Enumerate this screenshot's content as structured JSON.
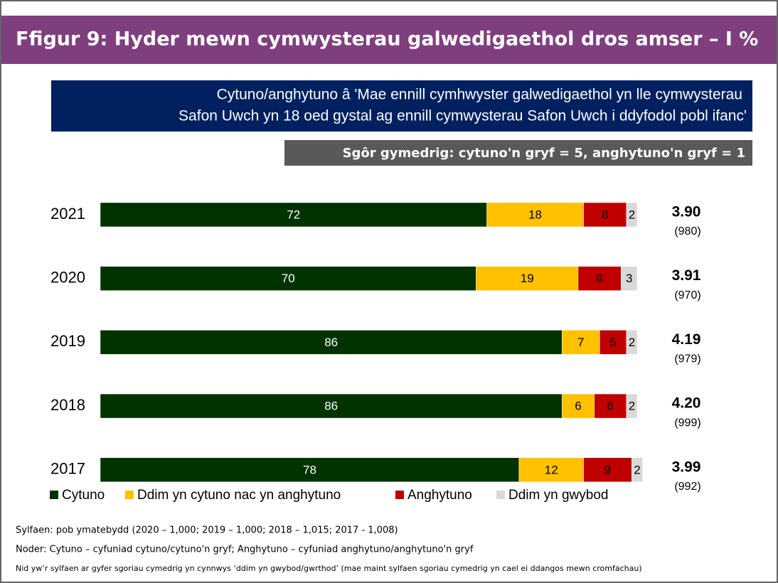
{
  "chart_data": {
    "type": "stacked_barh",
    "title": "Ffigur 9: Hyder mewn cymwysterau galwedigaethol dros amser – I %",
    "subtitle": [
      "Cytuno/anghytuno â 'Mae ennill cymhwyster galwedigaethol yn lle cymwysterau",
      "Safon Uwch yn 18 oed gystal ag ennill cymwysterau Safon Uwch i ddyfodol pobl ifanc'"
    ],
    "score_note": "Sgôr gymedrig: cytuno'n gryf = 5, anghytuno'n gryf = 1",
    "categories": [
      "2021",
      "2020",
      "2019",
      "2018",
      "2017"
    ],
    "xlim": [
      0,
      100
    ],
    "series": [
      {
        "name": "Cytuno",
        "color": "#003300",
        "values": [
          72,
          70,
          86,
          86,
          78
        ]
      },
      {
        "name": "Ddim yn cytuno nac yn anghytuno",
        "color": "#ffc000",
        "values": [
          18,
          19,
          7,
          6,
          12
        ]
      },
      {
        "name": "Anghytuno",
        "color": "#c00000",
        "values": [
          8,
          8,
          5,
          6,
          9
        ]
      },
      {
        "name": "Ddim yn gwybod",
        "color": "#d9d9d9",
        "values": [
          2,
          3,
          2,
          2,
          2
        ]
      }
    ],
    "mean_scores": [
      "3.90",
      "3.91",
      "4.19",
      "4.20",
      "3.99"
    ],
    "bases": [
      "(980)",
      "(970)",
      "(979)",
      "(999)",
      "(992)"
    ],
    "footnotes": [
      "Sylfaen: pob ymatebydd (2020 – 1,000; 2019 – 1,000; 2018 – 1,015; 2017 - 1,008)",
      "Noder: Cytuno – cyfuniad cytuno/cytuno'n gryf; Anghytuno – cyfuniad anghytuno/anghytuno'n gryf",
      "Nid yw’r sylfaen ar gyfer sgoriau cymedrig yn cynnwys ‘ddim yn gwybod/gwrthod’ (mae maint sylfaen sgoriau cymedrig yn cael ei ddangos mewn cromfachau)"
    ]
  }
}
